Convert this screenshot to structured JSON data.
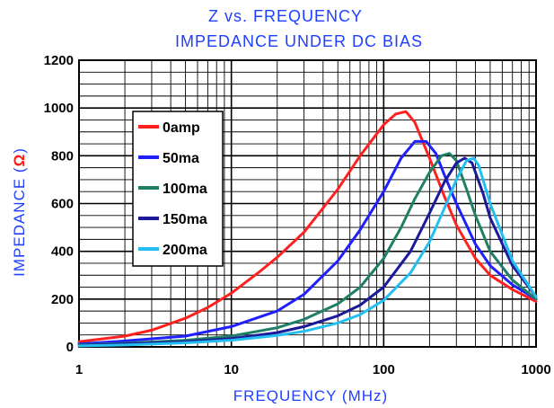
{
  "chart_data": {
    "type": "line",
    "title": "Z vs. FREQUENCY",
    "subtitle": "IMPEDANCE UNDER DC BIAS",
    "xlabel": "FREQUENCY (MHz)",
    "ylabel_prefix": "IMPEDANCE (",
    "ylabel_symbol": "Ω",
    "ylabel_suffix": ")",
    "x_scale": "log",
    "xlim": [
      1,
      1000
    ],
    "ylim": [
      0,
      1200
    ],
    "x_ticks": [
      1,
      10,
      100,
      1000
    ],
    "x_tick_labels": [
      "1",
      "10",
      "100",
      "1000"
    ],
    "y_ticks": [
      0,
      200,
      400,
      600,
      800,
      1000,
      1200
    ],
    "y_tick_labels": [
      "0",
      "200",
      "400",
      "600",
      "800",
      "1000",
      "1200"
    ],
    "grid": true,
    "legend_position": "top-left",
    "series": [
      {
        "name": "0amp",
        "color": "#ff2020",
        "x": [
          1,
          2,
          3,
          5,
          7,
          10,
          15,
          20,
          30,
          50,
          70,
          100,
          120,
          140,
          160,
          200,
          250,
          300,
          400,
          500,
          700,
          1000
        ],
        "y": [
          22,
          45,
          70,
          120,
          165,
          225,
          310,
          375,
          480,
          660,
          800,
          930,
          975,
          985,
          940,
          790,
          630,
          510,
          370,
          300,
          240,
          190
        ]
      },
      {
        "name": "50ma",
        "color": "#2020ff",
        "x": [
          1,
          2,
          5,
          10,
          20,
          30,
          50,
          70,
          100,
          130,
          160,
          190,
          220,
          250,
          300,
          400,
          500,
          700,
          1000
        ],
        "y": [
          12,
          25,
          45,
          85,
          150,
          220,
          360,
          490,
          650,
          790,
          860,
          860,
          810,
          720,
          600,
          430,
          340,
          260,
          200
        ]
      },
      {
        "name": "100ma",
        "color": "#1f7f66",
        "x": [
          1,
          2,
          5,
          10,
          20,
          30,
          50,
          70,
          100,
          130,
          160,
          200,
          240,
          270,
          300,
          350,
          400,
          500,
          700,
          1000
        ],
        "y": [
          8,
          15,
          28,
          45,
          80,
          115,
          180,
          250,
          370,
          500,
          620,
          730,
          800,
          810,
          780,
          660,
          550,
          400,
          280,
          200
        ]
      },
      {
        "name": "150ma",
        "color": "#1a1a9a",
        "x": [
          1,
          2,
          5,
          10,
          20,
          30,
          50,
          70,
          100,
          150,
          200,
          250,
          300,
          340,
          380,
          450,
          500,
          700,
          1000
        ],
        "y": [
          6,
          12,
          22,
          35,
          60,
          85,
          130,
          175,
          250,
          400,
          560,
          690,
          770,
          790,
          770,
          640,
          540,
          340,
          210
        ]
      },
      {
        "name": "200ma",
        "color": "#22bff0",
        "x": [
          1,
          2,
          5,
          10,
          20,
          30,
          50,
          70,
          100,
          150,
          200,
          250,
          300,
          350,
          390,
          420,
          500,
          700,
          1000
        ],
        "y": [
          4,
          8,
          17,
          28,
          48,
          65,
          100,
          135,
          195,
          310,
          440,
          580,
          700,
          780,
          790,
          760,
          600,
          360,
          210
        ]
      }
    ]
  }
}
